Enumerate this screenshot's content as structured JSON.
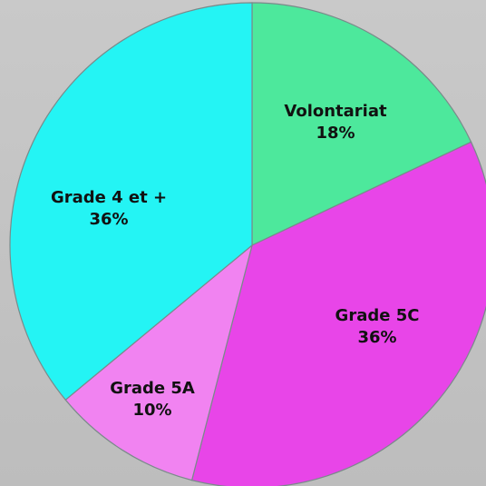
{
  "chart_data": {
    "type": "pie",
    "categories": [
      "Volontariat",
      "Grade 5C",
      "Grade 5A",
      "Grade 4 et +"
    ],
    "values": [
      18,
      36,
      10,
      36
    ],
    "value_labels": [
      "18%",
      "36%",
      "10%",
      "36%"
    ],
    "colors": [
      "#4de89c",
      "#e845e8",
      "#f183f1",
      "#24f4f4"
    ]
  }
}
